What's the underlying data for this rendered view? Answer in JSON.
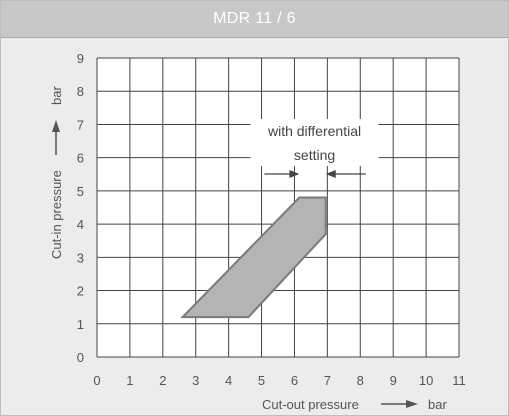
{
  "window": {
    "title": "MDR 11 / 6"
  },
  "chart_data": {
    "type": "area",
    "title": "MDR 11 / 6",
    "xlabel": "Cut-out pressure",
    "xunit": "bar",
    "ylabel": "Cut-in pressure",
    "yunit": "bar",
    "xlim": [
      0,
      11
    ],
    "ylim": [
      0,
      9
    ],
    "x_ticks": [
      "0",
      "1",
      "2",
      "3",
      "4",
      "5",
      "6",
      "7",
      "8",
      "9",
      "10",
      "11"
    ],
    "y_ticks": [
      "0",
      "1",
      "2",
      "3",
      "4",
      "5",
      "6",
      "7",
      "8",
      "9"
    ],
    "grid": true,
    "region": {
      "x": [
        2.6,
        4.6,
        6.95,
        6.95,
        6.15
      ],
      "y": [
        1.2,
        1.2,
        3.7,
        4.8,
        4.8
      ]
    },
    "annotation": {
      "lines": [
        "with differential",
        "setting"
      ],
      "span_x": [
        6.15,
        6.95
      ]
    },
    "colors": {
      "grid": "#444444",
      "region_fill": "#b4b4b4",
      "region_edge": "#7a7a7a",
      "text": "#555555"
    }
  }
}
